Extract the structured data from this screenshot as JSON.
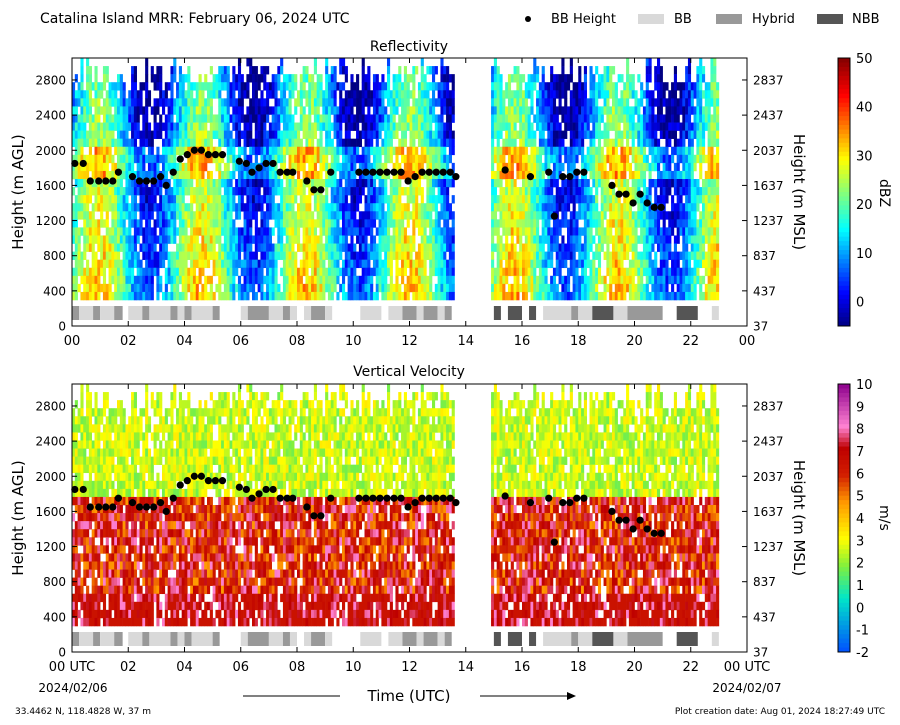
{
  "figure": {
    "title": "Catalina Island MRR:  February 06, 2024 UTC",
    "footer_left": "33.4462 N, 118.4828 W, 37 m",
    "footer_right": "Plot creation date: Aug 01, 2024 18:27:49 UTC",
    "xlabel": "Time (UTC)",
    "date_start": "2024/02/06",
    "date_end": "2024/02/07"
  },
  "legend": {
    "bb_height": "BB Height",
    "bb": "BB",
    "hybrid": "Hybrid",
    "nbb": "NBB",
    "colors": {
      "bb_height": "#000000",
      "bb": "#d9d9d9",
      "hybrid": "#999999",
      "nbb": "#555555"
    }
  },
  "chart_data": [
    {
      "type": "heatmap",
      "title": "Reflectivity",
      "ylabel": "Height (m AGL)",
      "ylabel_right": "Height (m MSL)",
      "colorbar_label": "dBZ",
      "colorbar_ticks": [
        "50",
        "40",
        "30",
        "20",
        "10",
        "0"
      ],
      "colorbar_range": [
        -5,
        50
      ],
      "xlim": [
        0,
        24
      ],
      "ylim": [
        0,
        3050
      ],
      "x_ticks": [
        "00",
        "02",
        "04",
        "06",
        "08",
        "10",
        "12",
        "14",
        "16",
        "18",
        "20",
        "22",
        "00"
      ],
      "y_ticks_left": [
        "0",
        "400",
        "800",
        "1200",
        "1600",
        "2000",
        "2400",
        "2800"
      ],
      "y_ticks_right": [
        "37",
        "437",
        "837",
        "1237",
        "1637",
        "2037",
        "2437",
        "2837"
      ]
    },
    {
      "type": "heatmap",
      "title": "Vertical Velocity",
      "ylabel": "Height (m AGL)",
      "ylabel_right": "Height (m MSL)",
      "colorbar_label": "m/s",
      "colorbar_ticks": [
        "10",
        "9",
        "8",
        "7",
        "6",
        "5",
        "4",
        "3",
        "2",
        "1",
        "0",
        "-1",
        "-2"
      ],
      "colorbar_range": [
        -2,
        10
      ],
      "xlim": [
        0,
        24
      ],
      "ylim": [
        0,
        3050
      ],
      "x_ticks": [
        "00 UTC",
        "02",
        "04",
        "06",
        "08",
        "10",
        "12",
        "14",
        "16",
        "18",
        "20",
        "22",
        "00 UTC"
      ],
      "y_ticks_left": [
        "0",
        "400",
        "800",
        "1200",
        "1600",
        "2000",
        "2400",
        "2800"
      ],
      "y_ticks_right": [
        "37",
        "437",
        "837",
        "1237",
        "1637",
        "2037",
        "2437",
        "2837"
      ]
    }
  ],
  "bb_height_points": [
    [
      0.1,
      1850
    ],
    [
      0.4,
      1850
    ],
    [
      0.65,
      1650
    ],
    [
      0.95,
      1650
    ],
    [
      1.2,
      1650
    ],
    [
      1.45,
      1650
    ],
    [
      1.65,
      1750
    ],
    [
      2.15,
      1700
    ],
    [
      2.4,
      1650
    ],
    [
      2.65,
      1650
    ],
    [
      2.9,
      1650
    ],
    [
      3.15,
      1700
    ],
    [
      3.35,
      1600
    ],
    [
      3.6,
      1750
    ],
    [
      3.85,
      1900
    ],
    [
      4.1,
      1950
    ],
    [
      4.35,
      2000
    ],
    [
      4.6,
      2000
    ],
    [
      4.85,
      1950
    ],
    [
      5.1,
      1950
    ],
    [
      5.35,
      1950
    ],
    [
      5.95,
      1875
    ],
    [
      6.2,
      1850
    ],
    [
      6.4,
      1750
    ],
    [
      6.65,
      1800
    ],
    [
      6.9,
      1850
    ],
    [
      7.15,
      1850
    ],
    [
      7.4,
      1750
    ],
    [
      7.65,
      1750
    ],
    [
      7.85,
      1750
    ],
    [
      8.35,
      1650
    ],
    [
      8.6,
      1550
    ],
    [
      8.85,
      1550
    ],
    [
      9.2,
      1750
    ],
    [
      10.2,
      1750
    ],
    [
      10.45,
      1750
    ],
    [
      10.7,
      1750
    ],
    [
      10.95,
      1750
    ],
    [
      11.2,
      1750
    ],
    [
      11.45,
      1750
    ],
    [
      11.7,
      1750
    ],
    [
      11.95,
      1650
    ],
    [
      12.2,
      1700
    ],
    [
      12.45,
      1750
    ],
    [
      12.7,
      1750
    ],
    [
      12.95,
      1750
    ],
    [
      13.2,
      1750
    ],
    [
      13.45,
      1750
    ],
    [
      13.65,
      1700
    ],
    [
      15.4,
      1775
    ],
    [
      16.3,
      1700
    ],
    [
      16.95,
      1750
    ],
    [
      17.15,
      1250
    ],
    [
      17.45,
      1700
    ],
    [
      17.7,
      1700
    ],
    [
      17.95,
      1750
    ],
    [
      18.2,
      1750
    ],
    [
      19.2,
      1600
    ],
    [
      19.45,
      1500
    ],
    [
      19.7,
      1500
    ],
    [
      19.95,
      1400
    ],
    [
      20.2,
      1500
    ],
    [
      20.45,
      1400
    ],
    [
      20.7,
      1350
    ],
    [
      20.95,
      1350
    ]
  ],
  "bb_type_segments": [
    {
      "type": "bb",
      "start": 0.0,
      "end": 0.25
    },
    {
      "type": "hybrid",
      "start": 0.0,
      "end": 0.25
    },
    {
      "type": "bb",
      "start": 0.25,
      "end": 0.75
    },
    {
      "type": "hybrid",
      "start": 0.75,
      "end": 1.0
    },
    {
      "type": "bb",
      "start": 1.0,
      "end": 1.5
    },
    {
      "type": "hybrid",
      "start": 1.5,
      "end": 1.8
    },
    {
      "type": "bb",
      "start": 2.0,
      "end": 2.5
    },
    {
      "type": "hybrid",
      "start": 2.5,
      "end": 2.75
    },
    {
      "type": "bb",
      "start": 2.75,
      "end": 3.5
    },
    {
      "type": "hybrid",
      "start": 3.5,
      "end": 3.75
    },
    {
      "type": "bb",
      "start": 3.75,
      "end": 4.0
    },
    {
      "type": "hybrid",
      "start": 4.0,
      "end": 4.25
    },
    {
      "type": "bb",
      "start": 4.25,
      "end": 5.0
    },
    {
      "type": "hybrid",
      "start": 5.0,
      "end": 5.25
    },
    {
      "type": "bb",
      "start": 6.0,
      "end": 6.25
    },
    {
      "type": "hybrid",
      "start": 6.25,
      "end": 7.0
    },
    {
      "type": "bb",
      "start": 7.0,
      "end": 7.5
    },
    {
      "type": "hybrid",
      "start": 7.5,
      "end": 7.75
    },
    {
      "type": "bb",
      "start": 7.75,
      "end": 8.0
    },
    {
      "type": "bb",
      "start": 8.25,
      "end": 8.5
    },
    {
      "type": "hybrid",
      "start": 8.5,
      "end": 9.0
    },
    {
      "type": "bb",
      "start": 9.0,
      "end": 9.25
    },
    {
      "type": "bb",
      "start": 10.25,
      "end": 11.0
    },
    {
      "type": "bb",
      "start": 11.25,
      "end": 11.75
    },
    {
      "type": "hybrid",
      "start": 11.75,
      "end": 12.25
    },
    {
      "type": "bb",
      "start": 12.25,
      "end": 12.5
    },
    {
      "type": "hybrid",
      "start": 12.5,
      "end": 13.0
    },
    {
      "type": "bb",
      "start": 13.0,
      "end": 13.25
    },
    {
      "type": "hybrid",
      "start": 13.25,
      "end": 13.5
    },
    {
      "type": "nbb",
      "start": 15.0,
      "end": 15.25
    },
    {
      "type": "nbb",
      "start": 15.5,
      "end": 16.0
    },
    {
      "type": "nbb",
      "start": 16.25,
      "end": 16.5
    },
    {
      "type": "bb",
      "start": 16.75,
      "end": 17.75
    },
    {
      "type": "hybrid",
      "start": 17.75,
      "end": 18.0
    },
    {
      "type": "bb",
      "start": 18.0,
      "end": 18.5
    },
    {
      "type": "nbb",
      "start": 18.5,
      "end": 19.25
    },
    {
      "type": "bb",
      "start": 19.25,
      "end": 19.75
    },
    {
      "type": "hybrid",
      "start": 19.75,
      "end": 21.0
    },
    {
      "type": "nbb",
      "start": 21.5,
      "end": 22.25
    },
    {
      "type": "bb",
      "start": 22.75,
      "end": 23.0
    }
  ],
  "precip_periods": [
    {
      "start": 0.0,
      "end": 13.6
    },
    {
      "start": 14.9,
      "end": 23.0
    }
  ]
}
